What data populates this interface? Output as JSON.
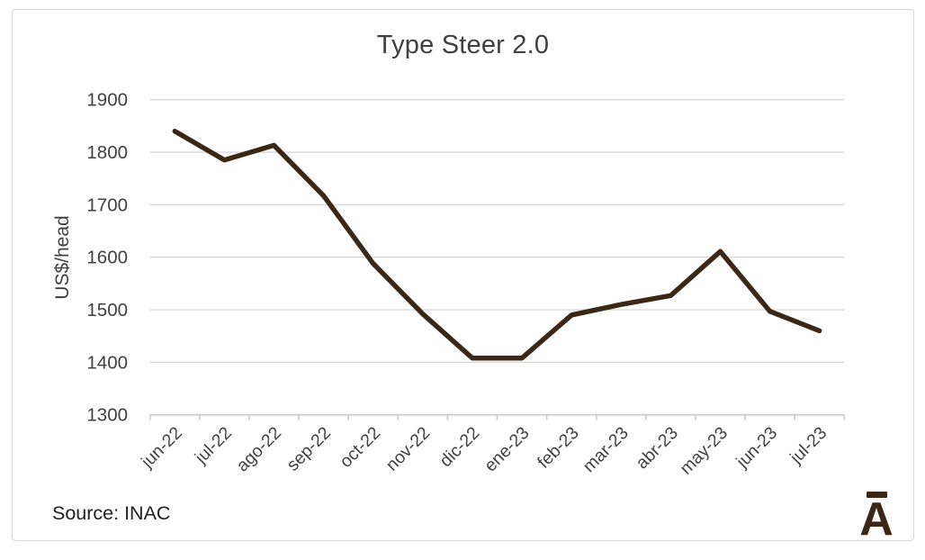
{
  "chart_data": {
    "type": "line",
    "title": "Type Steer 2.0",
    "xlabel": "",
    "ylabel": "US$/head",
    "categories": [
      "jun-22",
      "jul-22",
      "ago-22",
      "sep-22",
      "oct-22",
      "nov-22",
      "dic-22",
      "ene-23",
      "feb-23",
      "mar-23",
      "abr-23",
      "may-23",
      "jun-23",
      "jul-23"
    ],
    "values": [
      1840,
      1785,
      1813,
      1717,
      1588,
      1492,
      1408,
      1408,
      1490,
      1510,
      1527,
      1611,
      1497,
      1460
    ],
    "ylim": [
      1300,
      1900
    ],
    "ytick_step": 100,
    "ytick_labels": [
      "1300",
      "1400",
      "1500",
      "1600",
      "1700",
      "1800",
      "1900"
    ],
    "grid": "horizontal-on",
    "legend": "none",
    "x_label_rotation_deg": -45
  },
  "footer": {
    "source_label": "Source: INAC"
  },
  "logo": {
    "letter": "A",
    "shape": "letter-A-with-macron-bar"
  },
  "colors": {
    "line": "#3b2716",
    "logo": "#3b2716",
    "gridline": "#d9d9d9",
    "axis": "#c9c9c9",
    "text": "#404040",
    "source_text": "#1f1f1f",
    "card_border": "#d8d8d8",
    "background": "#ffffff"
  }
}
